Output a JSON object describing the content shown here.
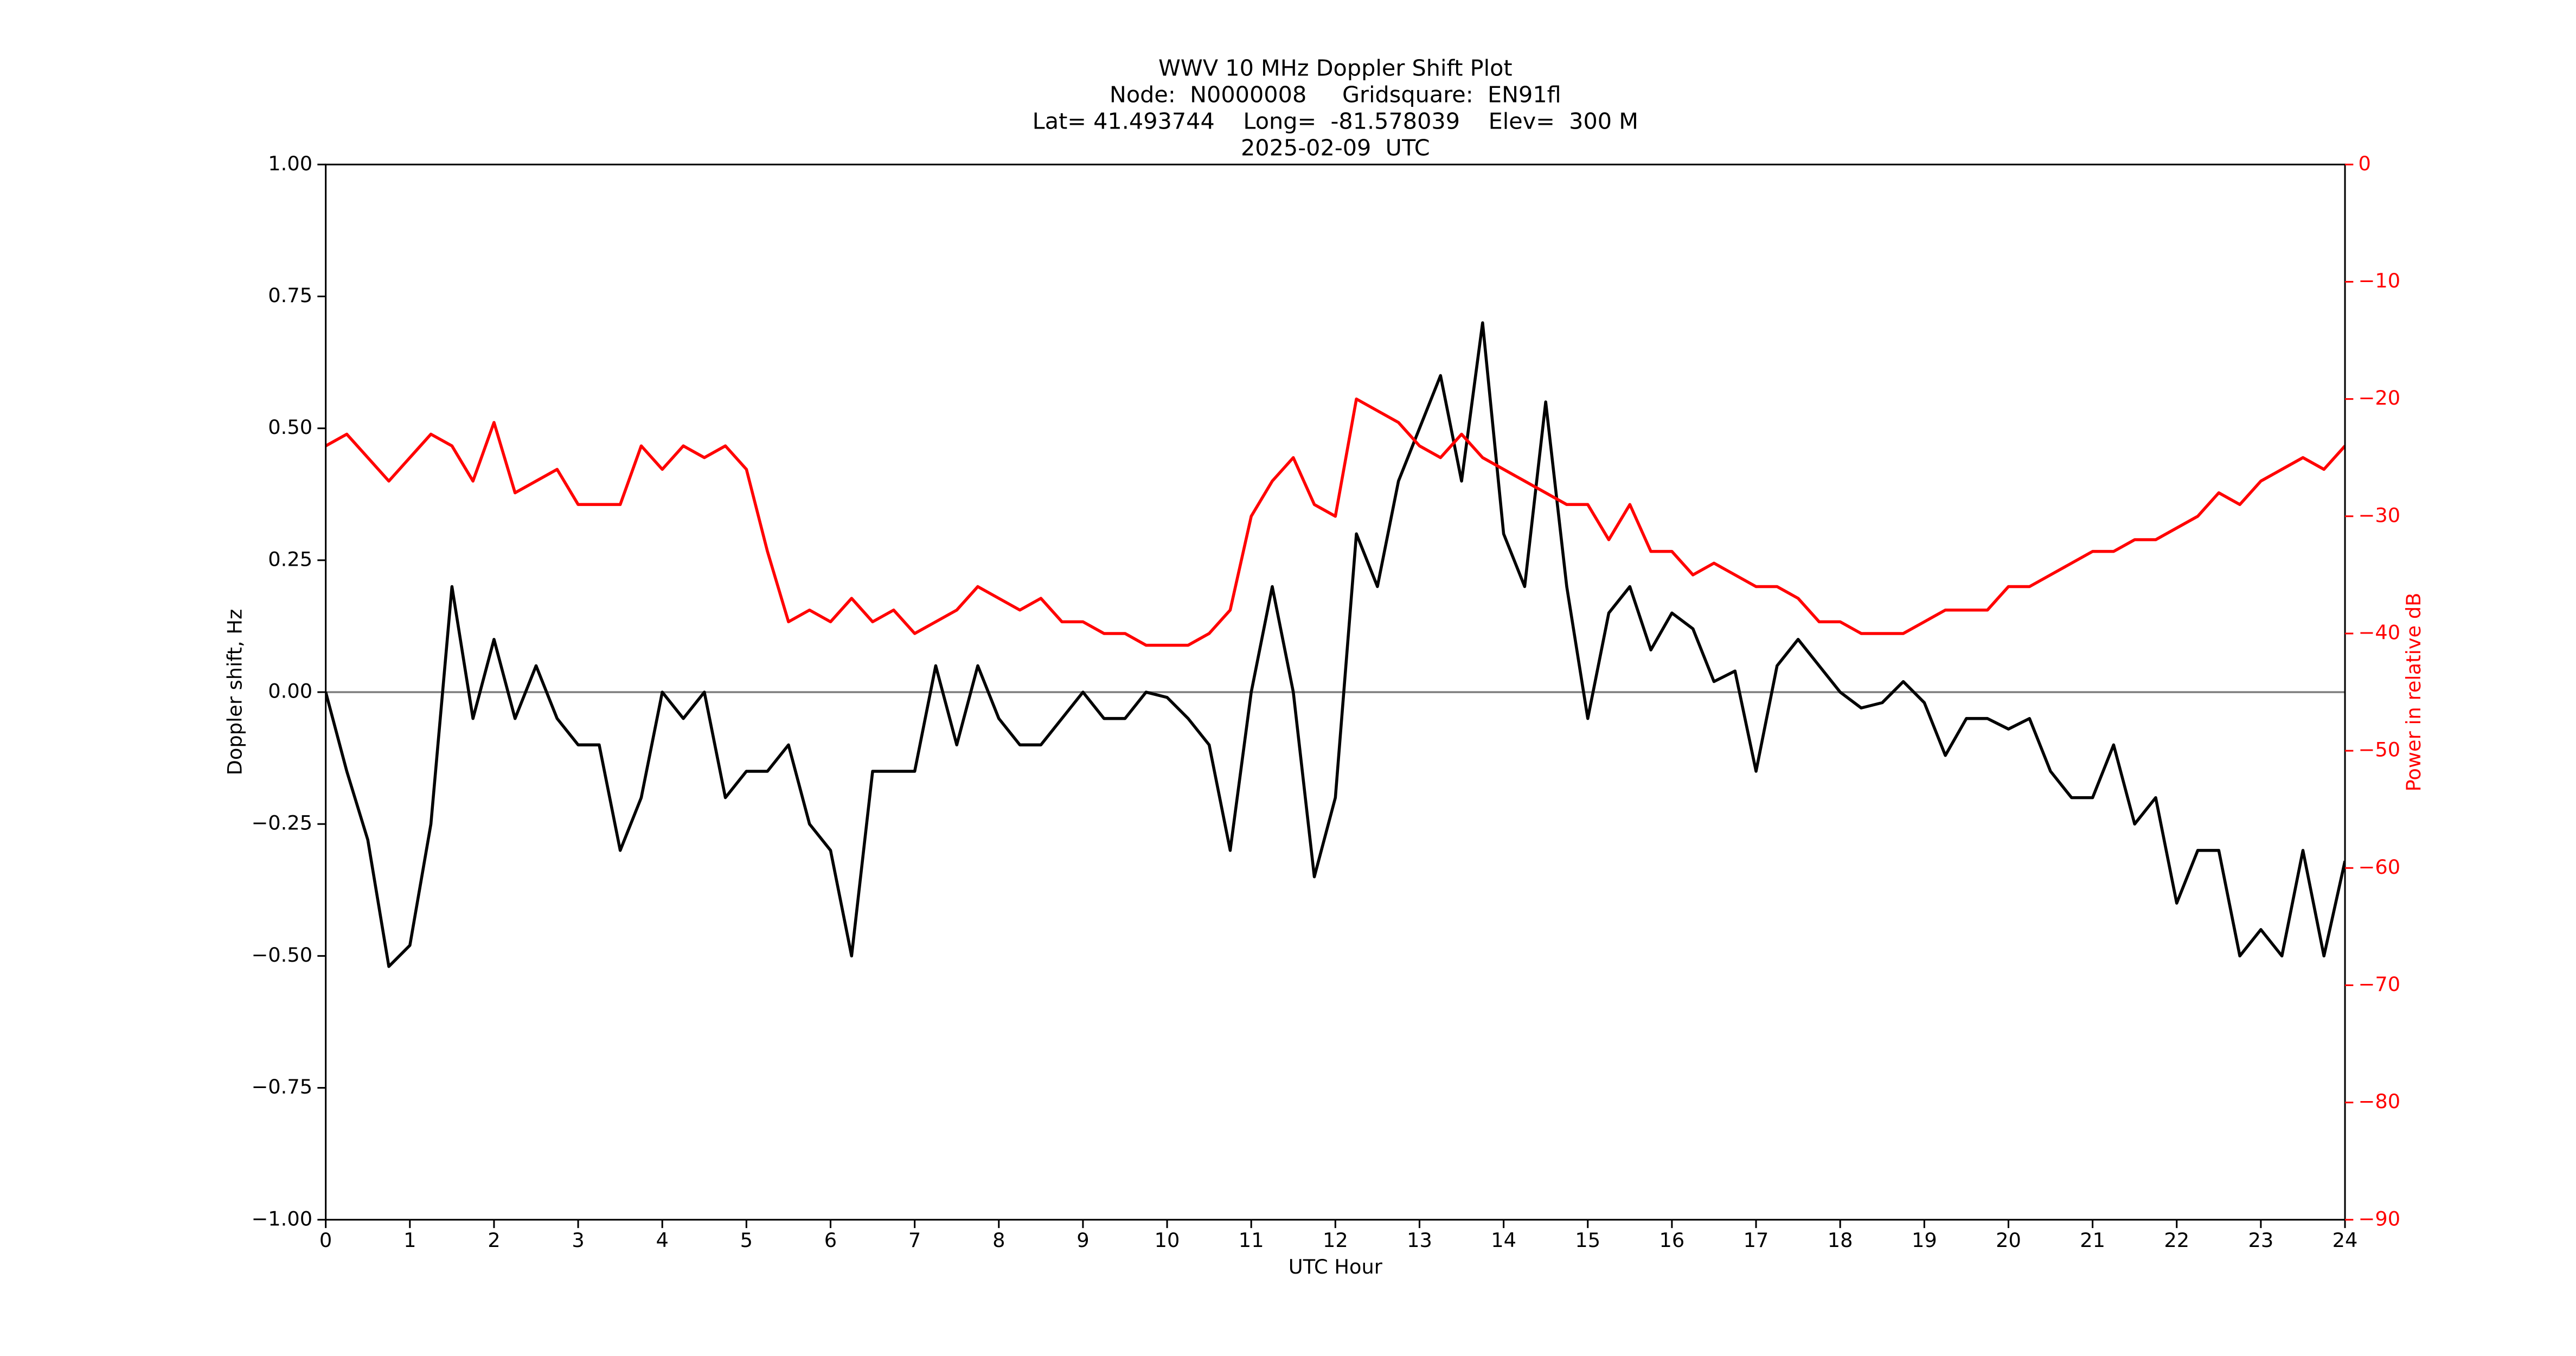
{
  "chart_data": {
    "type": "line",
    "title": [
      "WWV 10 MHz Doppler Shift Plot",
      "Node:  N0000008     Gridsquare:  EN91fl",
      "Lat= 41.493744    Long=  -81.578039    Elev=  300 M",
      "2025-02-09  UTC"
    ],
    "xlabel": "UTC Hour",
    "ylabel": "Doppler shift, Hz",
    "y2label": "Power in relative dB",
    "y2color": "#ff0000",
    "x": [
      0,
      0.25,
      0.5,
      0.75,
      1,
      1.25,
      1.5,
      1.75,
      2,
      2.25,
      2.5,
      2.75,
      3,
      3.25,
      3.5,
      3.75,
      4,
      4.25,
      4.5,
      4.75,
      5,
      5.25,
      5.5,
      5.75,
      6,
      6.25,
      6.5,
      6.75,
      7,
      7.25,
      7.5,
      7.75,
      8,
      8.25,
      8.5,
      8.75,
      9,
      9.25,
      9.5,
      9.75,
      10,
      10.25,
      10.5,
      10.75,
      11,
      11.25,
      11.5,
      11.75,
      12,
      12.25,
      12.5,
      12.75,
      13,
      13.25,
      13.5,
      13.75,
      14,
      14.25,
      14.5,
      14.75,
      15,
      15.25,
      15.5,
      15.75,
      16,
      16.25,
      16.5,
      16.75,
      17,
      17.25,
      17.5,
      17.75,
      18,
      18.25,
      18.5,
      18.75,
      19,
      19.25,
      19.5,
      19.75,
      20,
      20.25,
      20.5,
      20.75,
      21,
      21.25,
      21.5,
      21.75,
      22,
      22.25,
      22.5,
      22.75,
      23,
      23.25,
      23.5,
      23.75,
      24
    ],
    "series": [
      {
        "color": "#000000",
        "values": [
          0.0,
          -0.15,
          -0.28,
          -0.52,
          -0.48,
          -0.25,
          0.2,
          -0.05,
          0.1,
          -0.05,
          0.05,
          -0.05,
          -0.1,
          -0.1,
          -0.3,
          -0.2,
          0.0,
          -0.05,
          0.0,
          -0.2,
          -0.15,
          -0.15,
          -0.1,
          -0.25,
          -0.3,
          -0.5,
          -0.15,
          -0.15,
          -0.15,
          0.05,
          -0.1,
          0.05,
          -0.05,
          -0.1,
          -0.1,
          -0.05,
          0.0,
          -0.05,
          -0.05,
          0.0,
          -0.01,
          -0.05,
          -0.1,
          -0.3,
          0.0,
          0.2,
          0.0,
          -0.35,
          -0.2,
          0.3,
          0.2,
          0.4,
          0.5,
          0.6,
          0.4,
          0.7,
          0.3,
          0.2,
          0.55,
          0.2,
          -0.05,
          0.15,
          0.2,
          0.08,
          0.15,
          0.12,
          0.02,
          0.04,
          -0.15,
          0.05,
          0.1,
          0.05,
          0.0,
          -0.03,
          -0.02,
          0.02,
          -0.02,
          -0.12,
          -0.05,
          -0.05,
          -0.07,
          -0.05,
          -0.15,
          -0.2,
          -0.2,
          -0.1,
          -0.25,
          -0.2,
          -0.4,
          -0.3,
          -0.3,
          -0.5,
          -0.45,
          -0.5,
          -0.3,
          -0.5,
          -0.32
        ]
      },
      {
        "color": "#ff0000",
        "axis": "y2",
        "values": [
          -24,
          -23,
          -25,
          -27,
          -25,
          -23,
          -24,
          -27,
          -22,
          -28,
          -27,
          -26,
          -29,
          -29,
          -29,
          -24,
          -26,
          -24,
          -25,
          -24,
          -26,
          -33,
          -39,
          -38,
          -39,
          -37,
          -39,
          -38,
          -40,
          -39,
          -38,
          -36,
          -37,
          -38,
          -37,
          -39,
          -39,
          -40,
          -40,
          -41,
          -41,
          -41,
          -40,
          -38,
          -30,
          -27,
          -25,
          -29,
          -30,
          -20,
          -21,
          -22,
          -24,
          -25,
          -23,
          -25,
          -26,
          -27,
          -28,
          -29,
          -29,
          -32,
          -29,
          -33,
          -33,
          -35,
          -34,
          -35,
          -36,
          -36,
          -37,
          -39,
          -39,
          -40,
          -40,
          -40,
          -39,
          -38,
          -38,
          -38,
          -36,
          -36,
          -35,
          -34,
          -33,
          -33,
          -32,
          -32,
          -31,
          -30,
          -28,
          -29,
          -27,
          -26,
          -25,
          -26,
          -24
        ]
      }
    ],
    "xlim": [
      0,
      24
    ],
    "xticks": [
      0,
      1,
      2,
      3,
      4,
      5,
      6,
      7,
      8,
      9,
      10,
      11,
      12,
      13,
      14,
      15,
      16,
      17,
      18,
      19,
      20,
      21,
      22,
      23,
      24
    ],
    "ylim": [
      -1,
      1
    ],
    "yticks": [
      {
        "value": -1,
        "label": "−1.00"
      },
      {
        "value": -0.75,
        "label": "−0.75"
      },
      {
        "value": -0.5,
        "label": "−0.50"
      },
      {
        "value": -0.25,
        "label": "−0.25"
      },
      {
        "value": 0,
        "label": "0.00"
      },
      {
        "value": 0.25,
        "label": "0.25"
      },
      {
        "value": 0.5,
        "label": "0.50"
      },
      {
        "value": 0.75,
        "label": "0.75"
      },
      {
        "value": 1,
        "label": "1.00"
      }
    ],
    "y2lim": [
      -90,
      0
    ],
    "y2ticks": [
      {
        "value": -90,
        "label": "−90"
      },
      {
        "value": -80,
        "label": "−80"
      },
      {
        "value": -70,
        "label": "−70"
      },
      {
        "value": -60,
        "label": "−60"
      },
      {
        "value": -50,
        "label": "−50"
      },
      {
        "value": -40,
        "label": "−40"
      },
      {
        "value": -30,
        "label": "−30"
      },
      {
        "value": -20,
        "label": "−20"
      },
      {
        "value": -10,
        "label": "−10"
      },
      0
    ],
    "hline": {
      "value": 0,
      "color": "#808080"
    }
  }
}
